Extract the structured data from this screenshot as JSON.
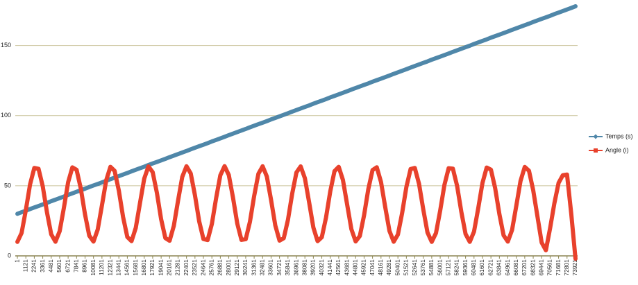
{
  "chart_data": {
    "type": "line",
    "categories": [
      "1",
      null,
      "1121",
      null,
      "2241",
      null,
      "3361",
      null,
      "4481",
      null,
      "5601",
      null,
      "6721",
      null,
      "7841",
      null,
      "8961",
      null,
      "10081",
      null,
      "11201",
      null,
      "12321",
      null,
      "13441",
      null,
      "14561",
      null,
      "15681",
      null,
      "16801",
      null,
      "17921",
      null,
      "19041",
      null,
      "20161",
      null,
      "21281",
      null,
      "22401",
      null,
      "23521",
      null,
      "24641",
      null,
      "25761",
      null,
      "26881",
      null,
      "28001",
      null,
      "29121",
      null,
      "30241",
      null,
      "31361",
      null,
      "32481",
      null,
      "33601",
      null,
      "34721",
      null,
      "35841",
      null,
      "36961",
      null,
      "38081",
      null,
      "39201",
      null,
      "40321",
      null,
      "41441",
      null,
      "42561",
      null,
      "43681",
      null,
      "44801",
      null,
      "45921",
      null,
      "47041",
      null,
      "48161",
      null,
      "49281",
      null,
      "50401",
      null,
      "51521",
      null,
      "52641",
      null,
      "53761",
      null,
      "54881",
      null,
      "56001",
      null,
      "57121",
      null,
      "58241",
      null,
      "59361",
      null,
      "60481",
      null,
      "61601",
      null,
      "62721",
      null,
      "63841",
      null,
      "64961",
      null,
      "66081",
      null,
      "67201",
      null,
      "68321",
      null,
      "69441",
      null,
      "70561",
      null,
      "71681",
      null,
      "72801",
      null,
      "73921"
    ],
    "series": [
      {
        "name": "Temps (s)",
        "color": "#4f87a9",
        "marker": "diamond",
        "values": [
          30.0,
          31.1,
          32.2,
          33.4,
          34.5,
          35.6,
          36.7,
          37.8,
          39.0,
          40.1,
          41.2,
          42.3,
          43.5,
          44.6,
          45.7,
          46.8,
          47.9,
          49.1,
          50.2,
          51.3,
          52.4,
          53.5,
          54.7,
          55.8,
          56.9,
          58.0,
          59.1,
          60.3,
          61.4,
          62.5,
          63.6,
          64.8,
          65.9,
          67.0,
          68.1,
          69.2,
          70.4,
          71.5,
          72.6,
          73.7,
          74.8,
          76.0,
          77.1,
          78.2,
          79.3,
          80.4,
          81.6,
          82.7,
          83.8,
          84.9,
          86.1,
          87.2,
          88.3,
          89.4,
          90.5,
          91.7,
          92.8,
          93.9,
          95.0,
          96.1,
          97.3,
          98.4,
          99.5,
          100.6,
          101.7,
          102.9,
          104.0,
          105.1,
          106.2,
          107.3,
          108.5,
          109.6,
          110.7,
          111.8,
          113.0,
          114.1,
          115.2,
          116.3,
          117.4,
          118.6,
          119.7,
          120.8,
          121.9,
          123.0,
          124.2,
          125.3,
          126.4,
          127.5,
          128.6,
          129.8,
          130.9,
          132.0,
          133.1,
          134.3,
          135.4,
          136.5,
          137.6,
          138.7,
          139.9,
          141.0,
          142.1,
          143.2,
          144.3,
          145.5,
          146.6,
          147.7,
          148.8,
          149.9,
          151.1,
          152.2,
          153.3,
          154.4,
          155.6,
          156.7,
          157.8,
          158.9,
          160.0,
          161.2,
          162.3,
          163.4,
          164.5,
          165.6,
          166.8,
          167.9,
          169.0,
          170.1,
          171.2,
          172.4,
          173.5,
          174.6,
          175.7,
          176.8,
          178.0
        ]
      },
      {
        "name": "Angle (i)",
        "color": "#e8412c",
        "marker": "square",
        "values": [
          10.0,
          16.4,
          32.7,
          51.0,
          62.7,
          62.1,
          49.6,
          31.0,
          15.4,
          10.1,
          17.6,
          34.3,
          52.5,
          63.1,
          61.4,
          48.0,
          29.5,
          14.4,
          10.2,
          18.8,
          36.0,
          53.8,
          63.5,
          60.6,
          46.5,
          27.7,
          13.5,
          10.5,
          20.0,
          37.7,
          55.1,
          63.8,
          59.7,
          44.9,
          26.1,
          12.7,
          10.8,
          21.4,
          39.4,
          56.4,
          63.9,
          58.8,
          43.2,
          24.6,
          12.0,
          11.3,
          22.8,
          41.1,
          57.5,
          64.0,
          57.7,
          41.5,
          23.1,
          11.4,
          11.9,
          24.3,
          42.7,
          58.5,
          63.9,
          56.6,
          39.9,
          21.7,
          10.9,
          12.6,
          25.8,
          44.4,
          59.5,
          63.8,
          55.4,
          38.2,
          20.3,
          10.5,
          13.3,
          27.4,
          46.0,
          60.4,
          63.5,
          54.1,
          36.5,
          19.0,
          10.3,
          14.2,
          29.0,
          47.6,
          61.2,
          63.2,
          52.7,
          34.8,
          17.8,
          10.1,
          15.2,
          30.6,
          49.1,
          61.9,
          62.7,
          51.3,
          33.1,
          16.6,
          10.0,
          16.2,
          32.3,
          50.6,
          62.5,
          62.2,
          49.9,
          31.4,
          15.6,
          10.0,
          17.3,
          34.0,
          52.0,
          63.0,
          61.5,
          48.3,
          29.8,
          14.6,
          10.2,
          18.5,
          35.7,
          53.4,
          63.4,
          60.7,
          46.8,
          28.2,
          9.5,
          4.0,
          19.8,
          37.4,
          52.0,
          57.5,
          58.0,
          30.0,
          -2.0
        ]
      }
    ],
    "ylim": [
      0,
      180
    ],
    "yticks": [
      0,
      50,
      100,
      150
    ],
    "grid": true,
    "legend": "right"
  }
}
